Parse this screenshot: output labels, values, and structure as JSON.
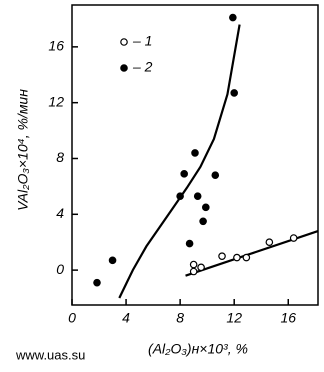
{
  "chart_data": {
    "type": "scatter",
    "xlabel": "(Al₂O₃)н×10³, %",
    "ylabel": "VAl₂O₃×10⁴, %/мин",
    "watermark": "www.uas.su",
    "xlim": [
      0,
      18.2
    ],
    "ylim": [
      -2.5,
      19
    ],
    "xticks": [
      0,
      4,
      8,
      12,
      16
    ],
    "yticks": [
      0,
      4,
      8,
      12,
      16
    ],
    "series": [
      {
        "name": "– 1",
        "marker": "open",
        "color": "#000000",
        "x": [
          9.0,
          9.0,
          9.55,
          11.1,
          12.2,
          12.9,
          14.6,
          16.4
        ],
        "values": [
          0.4,
          -0.1,
          0.2,
          1.0,
          0.9,
          0.9,
          2.0,
          2.3
        ]
      },
      {
        "name": "– 2",
        "marker": "filled",
        "color": "#000000",
        "x": [
          1.85,
          3.0,
          8.7,
          8.0,
          8.3,
          9.1,
          9.3,
          9.7,
          9.9,
          10.6,
          12.0,
          11.9
        ],
        "values": [
          -0.9,
          0.7,
          1.9,
          5.3,
          6.9,
          8.4,
          5.3,
          3.5,
          4.5,
          6.8,
          12.7,
          18.1
        ]
      }
    ],
    "fits": [
      {
        "x": [
          8.4,
          18.2
        ],
        "values": [
          -0.4,
          2.8
        ]
      },
      {
        "x": [
          3.5,
          4.5,
          5.5,
          6.5,
          7.5,
          8.5,
          9.5,
          10.5,
          11.5,
          12.4
        ],
        "values": [
          -2.0,
          0.0,
          1.7,
          3.1,
          4.5,
          5.9,
          7.4,
          9.4,
          12.6,
          17.6
        ]
      }
    ]
  }
}
